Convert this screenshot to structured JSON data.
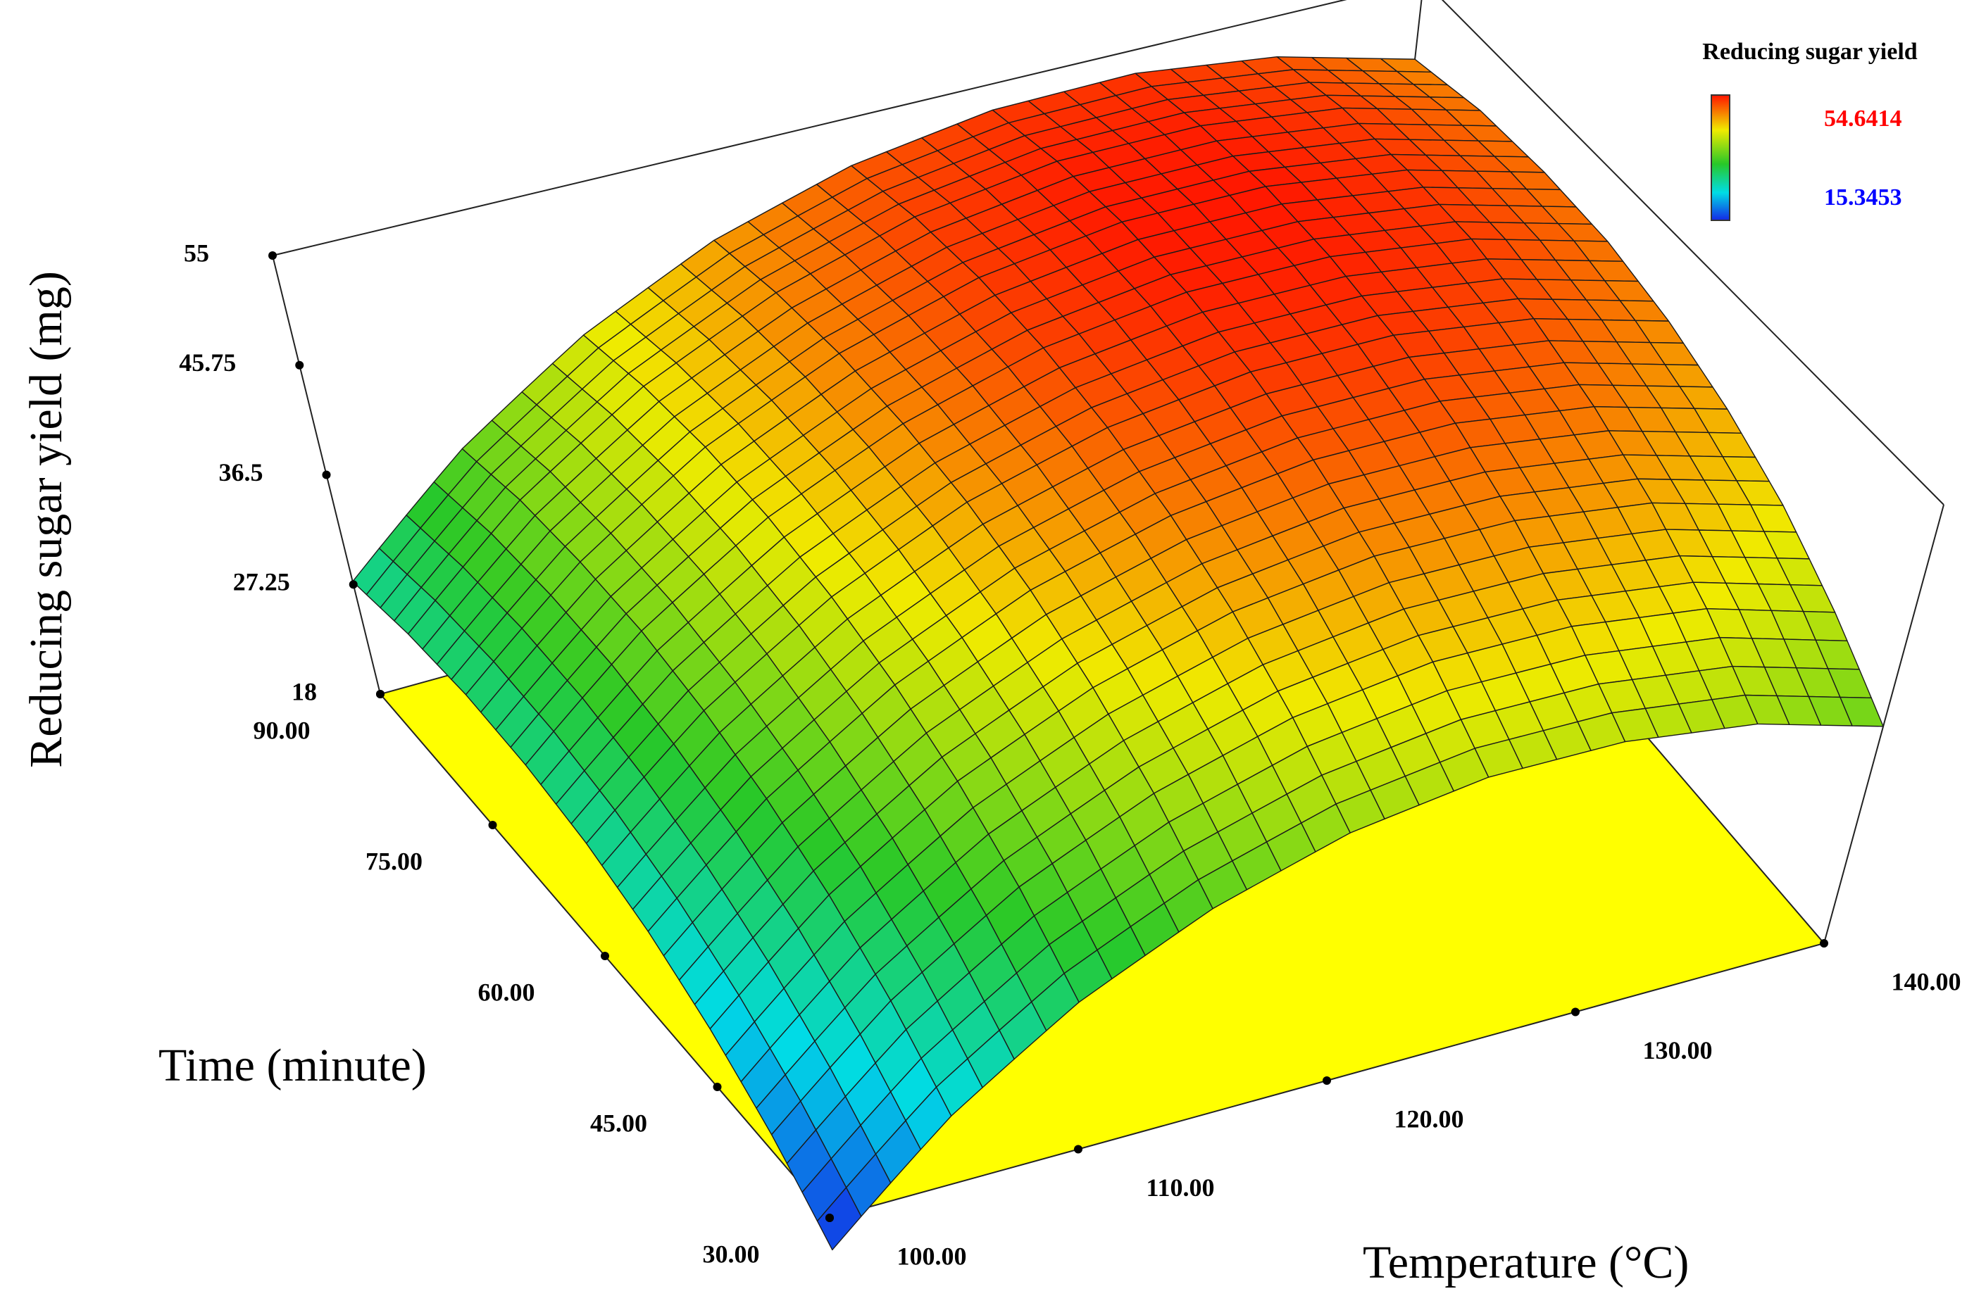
{
  "chart_data": {
    "type": "surface",
    "zlabel": "Reducing sugar yield (mg)",
    "ylabel": "Time (minute)",
    "xlabel": "Temperature (°C)",
    "legend": {
      "title": "Reducing sugar yield",
      "max": 54.6414,
      "min": 15.3453
    },
    "x": [
      100,
      105,
      110,
      115,
      120,
      125,
      130,
      135,
      140
    ],
    "y": [
      30,
      37.5,
      45,
      52.5,
      60,
      67.5,
      75,
      82.5,
      90
    ],
    "z": [
      [
        15.3,
        23.7,
        30.4,
        35.4,
        38.9,
        40.7,
        40.8,
        39.4,
        36.3
      ],
      [
        19.5,
        27.9,
        34.6,
        39.6,
        43.1,
        44.9,
        45.0,
        43.6,
        40.4
      ],
      [
        22.9,
        31.3,
        38.0,
        43.0,
        46.5,
        48.3,
        48.4,
        47.0,
        43.9
      ],
      [
        25.6,
        33.9,
        40.6,
        45.7,
        49.1,
        50.9,
        51.1,
        49.6,
        46.5
      ],
      [
        27.5,
        35.8,
        42.5,
        47.6,
        51.0,
        52.8,
        53.0,
        51.5,
        48.4
      ],
      [
        28.6,
        37.0,
        43.7,
        48.7,
        52.2,
        54.0,
        54.1,
        52.7,
        49.6
      ],
      [
        29.0,
        37.3,
        44.1,
        49.1,
        52.6,
        54.4,
        54.5,
        53.0,
        49.9
      ],
      [
        28.6,
        37.0,
        43.7,
        48.7,
        52.2,
        54.0,
        54.1,
        52.7,
        49.6
      ],
      [
        27.5,
        35.8,
        42.5,
        47.6,
        51.0,
        52.8,
        53.0,
        51.5,
        48.4
      ]
    ],
    "xlim": [
      100,
      140
    ],
    "ylim": [
      30,
      90
    ],
    "zlim": [
      18,
      55
    ],
    "xticks": [
      {
        "value": 100,
        "label": "100.00"
      },
      {
        "value": 110,
        "label": "110.00"
      },
      {
        "value": 120,
        "label": "120.00"
      },
      {
        "value": 130,
        "label": "130.00"
      },
      {
        "value": 140,
        "label": "140.00"
      }
    ],
    "yticks": [
      {
        "value": 30,
        "label": "30.00"
      },
      {
        "value": 45,
        "label": "45.00"
      },
      {
        "value": 60,
        "label": "60.00"
      },
      {
        "value": 75,
        "label": "75.00"
      },
      {
        "value": 90,
        "label": "90.00"
      }
    ],
    "zticks": [
      18,
      27.25,
      36.5,
      45.75,
      55
    ]
  }
}
